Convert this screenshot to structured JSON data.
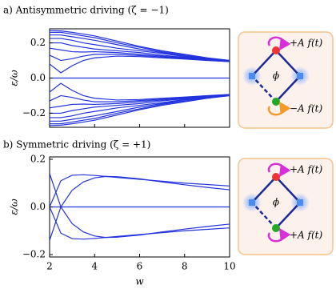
{
  "chart_data": [
    {
      "type": "line",
      "title": "a) Antisymmetric driving (ζ = −1)",
      "ylabel": "ε/ω",
      "color": "#2233dd",
      "x": [
        2,
        2.5,
        3,
        3.5,
        4,
        5,
        6,
        7,
        8,
        9,
        10
      ],
      "series": [
        {
          "values": [
            0.27,
            0.268,
            0.26,
            0.25,
            0.24,
            0.21,
            0.18,
            0.155,
            0.135,
            0.115,
            0.1
          ]
        },
        {
          "values": [
            0.26,
            0.26,
            0.25,
            0.24,
            0.23,
            0.2,
            0.175,
            0.15,
            0.13,
            0.113,
            0.1
          ]
        },
        {
          "values": [
            0.245,
            0.245,
            0.235,
            0.225,
            0.215,
            0.19,
            0.165,
            0.145,
            0.125,
            0.11,
            0.098
          ]
        },
        {
          "values": [
            0.225,
            0.225,
            0.215,
            0.2,
            0.19,
            0.17,
            0.155,
            0.14,
            0.122,
            0.108,
            0.097
          ]
        },
        {
          "values": [
            0.2,
            0.2,
            0.185,
            0.175,
            0.165,
            0.155,
            0.145,
            0.13,
            0.118,
            0.106,
            0.096
          ]
        },
        {
          "values": [
            0.17,
            0.16,
            0.15,
            0.148,
            0.15,
            0.145,
            0.135,
            0.125,
            0.115,
            0.104,
            0.095
          ]
        },
        {
          "values": [
            0.13,
            0.1,
            0.11,
            0.125,
            0.135,
            0.135,
            0.128,
            0.12,
            0.112,
            0.102,
            0.094
          ]
        },
        {
          "values": [
            0.08,
            0.03,
            0.07,
            0.1,
            0.115,
            0.125,
            0.122,
            0.115,
            0.108,
            0.1,
            0.093
          ]
        },
        {
          "values": [
            0,
            0,
            0,
            0,
            0,
            0,
            0,
            0,
            0,
            0,
            0
          ]
        },
        {
          "values": [
            -0.08,
            -0.03,
            -0.07,
            -0.1,
            -0.115,
            -0.125,
            -0.122,
            -0.115,
            -0.108,
            -0.1,
            -0.093
          ]
        },
        {
          "values": [
            -0.13,
            -0.1,
            -0.11,
            -0.125,
            -0.135,
            -0.135,
            -0.128,
            -0.12,
            -0.112,
            -0.102,
            -0.094
          ]
        },
        {
          "values": [
            -0.17,
            -0.16,
            -0.15,
            -0.148,
            -0.15,
            -0.145,
            -0.135,
            -0.125,
            -0.115,
            -0.104,
            -0.095
          ]
        },
        {
          "values": [
            -0.2,
            -0.2,
            -0.185,
            -0.175,
            -0.165,
            -0.155,
            -0.145,
            -0.13,
            -0.118,
            -0.106,
            -0.096
          ]
        },
        {
          "values": [
            -0.225,
            -0.225,
            -0.215,
            -0.2,
            -0.19,
            -0.17,
            -0.155,
            -0.14,
            -0.122,
            -0.108,
            -0.097
          ]
        },
        {
          "values": [
            -0.245,
            -0.245,
            -0.235,
            -0.225,
            -0.215,
            -0.19,
            -0.165,
            -0.145,
            -0.125,
            -0.11,
            -0.098
          ]
        },
        {
          "values": [
            -0.26,
            -0.26,
            -0.25,
            -0.24,
            -0.23,
            -0.2,
            -0.175,
            -0.15,
            -0.13,
            -0.113,
            -0.1
          ]
        },
        {
          "values": [
            -0.27,
            -0.268,
            -0.26,
            -0.25,
            -0.24,
            -0.21,
            -0.18,
            -0.155,
            -0.135,
            -0.115,
            -0.1
          ]
        }
      ],
      "xlim": [
        2,
        10
      ],
      "xticks": [
        2,
        4,
        6,
        8,
        10
      ],
      "xtick_labels": false,
      "ylim": [
        -0.28,
        0.28
      ],
      "yticks": [
        {
          "value": -0.2,
          "label": "−0.2"
        },
        {
          "value": 0,
          "label": "0.0"
        },
        0.2
      ]
    },
    {
      "type": "line",
      "title": "b) Symmetric driving (ζ = +1)",
      "ylabel": "ε/ω",
      "xlabel": "w",
      "color": "#2233dd",
      "x": [
        2,
        2.5,
        3,
        3.5,
        4,
        4.5,
        5,
        6,
        7,
        8,
        9,
        10
      ],
      "series": [
        {
          "values": [
            0.14,
            0.0,
            -0.07,
            -0.105,
            -0.122,
            -0.128,
            -0.127,
            -0.118,
            -0.105,
            -0.093,
            -0.082,
            -0.072
          ]
        },
        {
          "values": [
            -0.14,
            0.0,
            0.07,
            0.105,
            0.122,
            0.128,
            0.127,
            0.118,
            0.105,
            0.093,
            0.082,
            0.072
          ]
        },
        {
          "values": [
            0.0,
            0.11,
            0.133,
            0.135,
            0.132,
            0.128,
            0.124,
            0.116,
            0.108,
            0.1,
            0.094,
            0.088
          ]
        },
        {
          "values": [
            0.0,
            -0.11,
            -0.133,
            -0.135,
            -0.132,
            -0.128,
            -0.124,
            -0.116,
            -0.108,
            -0.1,
            -0.094,
            -0.088
          ]
        },
        {
          "values": [
            0,
            0,
            0,
            0,
            0,
            0,
            0,
            0,
            0,
            0,
            0,
            0
          ]
        }
      ],
      "xlim": [
        2,
        10
      ],
      "xticks": [
        2,
        4,
        6,
        8,
        10
      ],
      "xtick_labels": true,
      "ylim": [
        -0.21,
        0.21
      ],
      "yticks": [
        {
          "value": -0.2,
          "label": "−0.2"
        },
        {
          "value": 0,
          "label": "0.0"
        },
        0.2
      ]
    }
  ],
  "diagrams": [
    {
      "top_label": "+A f(t)",
      "bottom_label": "−A f(t)",
      "center_label": "ϕ",
      "bottom_arrow_color": "#f39a2a"
    },
    {
      "top_label": "+A f(t)",
      "bottom_label": "+A f(t)",
      "center_label": "ϕ",
      "bottom_arrow_color": "#d82fd8"
    }
  ]
}
